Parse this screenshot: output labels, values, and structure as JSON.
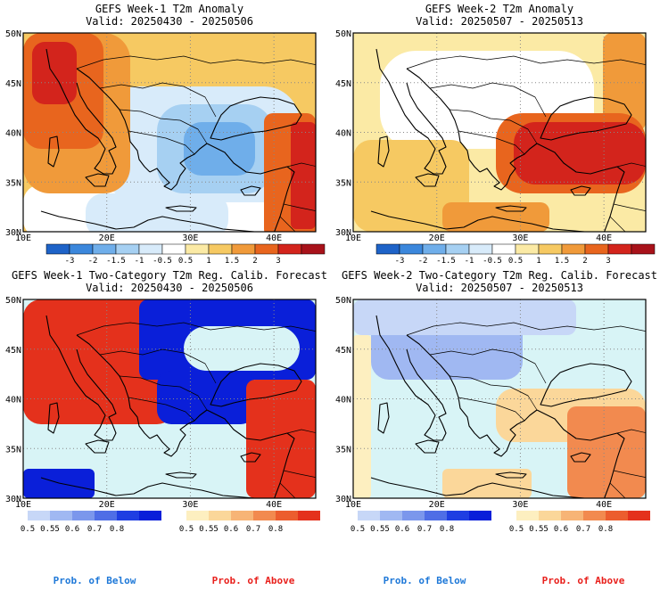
{
  "panels": [
    {
      "title": "GEFS Week-1 T2m Anomaly",
      "valid": "Valid: 20250430 - 20250506"
    },
    {
      "title": "GEFS Week-2 T2m Anomaly",
      "valid": "Valid: 20250507 - 20250513"
    },
    {
      "title": "GEFS Week-1 Two-Category T2m Reg. Calib. Forecast",
      "valid": "Valid: 20250430 - 20250506"
    },
    {
      "title": "GEFS Week-2 Two-Category T2m Reg. Calib. Forecast",
      "valid": "Valid: 20250507 - 20250513"
    }
  ],
  "axes": {
    "x_ticks": [
      "10E",
      "20E",
      "30E",
      "40E"
    ],
    "y_ticks": [
      "50N",
      "45N",
      "40N",
      "35N",
      "30N"
    ],
    "lon_range": [
      10,
      45
    ],
    "lat_range": [
      30,
      50
    ]
  },
  "anomaly_colorbar": {
    "labels": [
      "-3",
      "-2",
      "-1.5",
      "-1",
      "-0.5",
      "0.5",
      "1",
      "1.5",
      "2",
      "3"
    ],
    "colors": [
      "#1e63c8",
      "#3b87dc",
      "#6faeea",
      "#a6d0f2",
      "#d8ebfa",
      "#ffffff",
      "#fbeaa5",
      "#f6c962",
      "#f09a3a",
      "#e8651e",
      "#d3241c",
      "#a8121a"
    ]
  },
  "prob_colorbars": {
    "below": {
      "labels": [
        "0.5",
        "0.55",
        "0.6",
        "0.7",
        "0.8"
      ],
      "colors": [
        "#c7d7f7",
        "#a0b8f2",
        "#7b97ec",
        "#4f6ee6",
        "#1f3ee2",
        "#0a1fd9"
      ]
    },
    "above": {
      "labels": [
        "0.5",
        "0.55",
        "0.6",
        "0.7",
        "0.8"
      ],
      "colors": [
        "#fdefc0",
        "#fbd79a",
        "#f7b476",
        "#f28a4f",
        "#ec5d2e",
        "#e4311c"
      ]
    }
  },
  "prob_labels": {
    "below": "Prob. of Below",
    "above": "Prob. of Above"
  },
  "colors": {
    "ocean_prob": "#d8f4f6",
    "below_text": "#1e78d8",
    "above_text": "#e8201c"
  }
}
